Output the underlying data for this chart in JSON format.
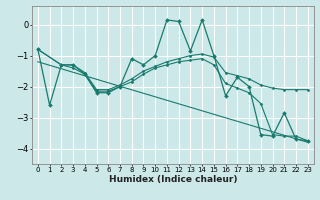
{
  "title": "",
  "xlabel": "Humidex (Indice chaleur)",
  "ylabel": "",
  "bg_color": "#cce8e8",
  "grid_color": "#ffffff",
  "line_color": "#1a7a6e",
  "xlim": [
    -0.5,
    23.5
  ],
  "ylim": [
    -4.5,
    0.6
  ],
  "xticks": [
    0,
    1,
    2,
    3,
    4,
    5,
    6,
    7,
    8,
    9,
    10,
    11,
    12,
    13,
    14,
    15,
    16,
    17,
    18,
    19,
    20,
    21,
    22,
    23
  ],
  "yticks": [
    0,
    -1,
    -2,
    -3,
    -4
  ],
  "lines": [
    {
      "x": [
        0,
        1,
        2,
        3,
        4,
        5,
        6,
        7,
        8,
        9,
        10,
        11,
        12,
        13,
        14,
        15,
        16,
        17,
        18,
        19,
        20,
        21,
        22,
        23
      ],
      "y": [
        -0.8,
        -2.6,
        -1.3,
        -1.3,
        -1.6,
        -2.2,
        -2.2,
        -2.0,
        -1.1,
        -1.3,
        -1.0,
        0.15,
        0.1,
        -0.85,
        0.15,
        -1.0,
        -2.3,
        -1.7,
        -2.0,
        -3.55,
        -3.6,
        -2.85,
        -3.7,
        -3.75
      ]
    },
    {
      "x": [
        0,
        2,
        3,
        4,
        5,
        6,
        7,
        8,
        9,
        10,
        11,
        12,
        13,
        14,
        15,
        16,
        17,
        18,
        19,
        20,
        21,
        22,
        23
      ],
      "y": [
        -0.8,
        -1.3,
        -1.3,
        -1.55,
        -2.1,
        -2.1,
        -1.95,
        -1.75,
        -1.5,
        -1.35,
        -1.2,
        -1.1,
        -1.0,
        -0.95,
        -1.05,
        -1.55,
        -1.65,
        -1.75,
        -1.95,
        -2.05,
        -2.1,
        -2.1,
        -2.1
      ]
    },
    {
      "x": [
        0,
        2,
        3,
        4,
        5,
        6,
        7,
        8,
        9,
        10,
        11,
        12,
        13,
        14,
        15,
        16,
        17,
        18,
        19,
        20,
        21,
        22,
        23
      ],
      "y": [
        -0.8,
        -1.3,
        -1.4,
        -1.6,
        -2.15,
        -2.15,
        -2.0,
        -1.85,
        -1.6,
        -1.4,
        -1.3,
        -1.2,
        -1.15,
        -1.1,
        -1.3,
        -1.9,
        -2.05,
        -2.2,
        -2.55,
        -3.55,
        -3.6,
        -3.6,
        -3.75
      ]
    },
    {
      "x": [
        0,
        23
      ],
      "y": [
        -1.2,
        -3.8
      ]
    }
  ]
}
